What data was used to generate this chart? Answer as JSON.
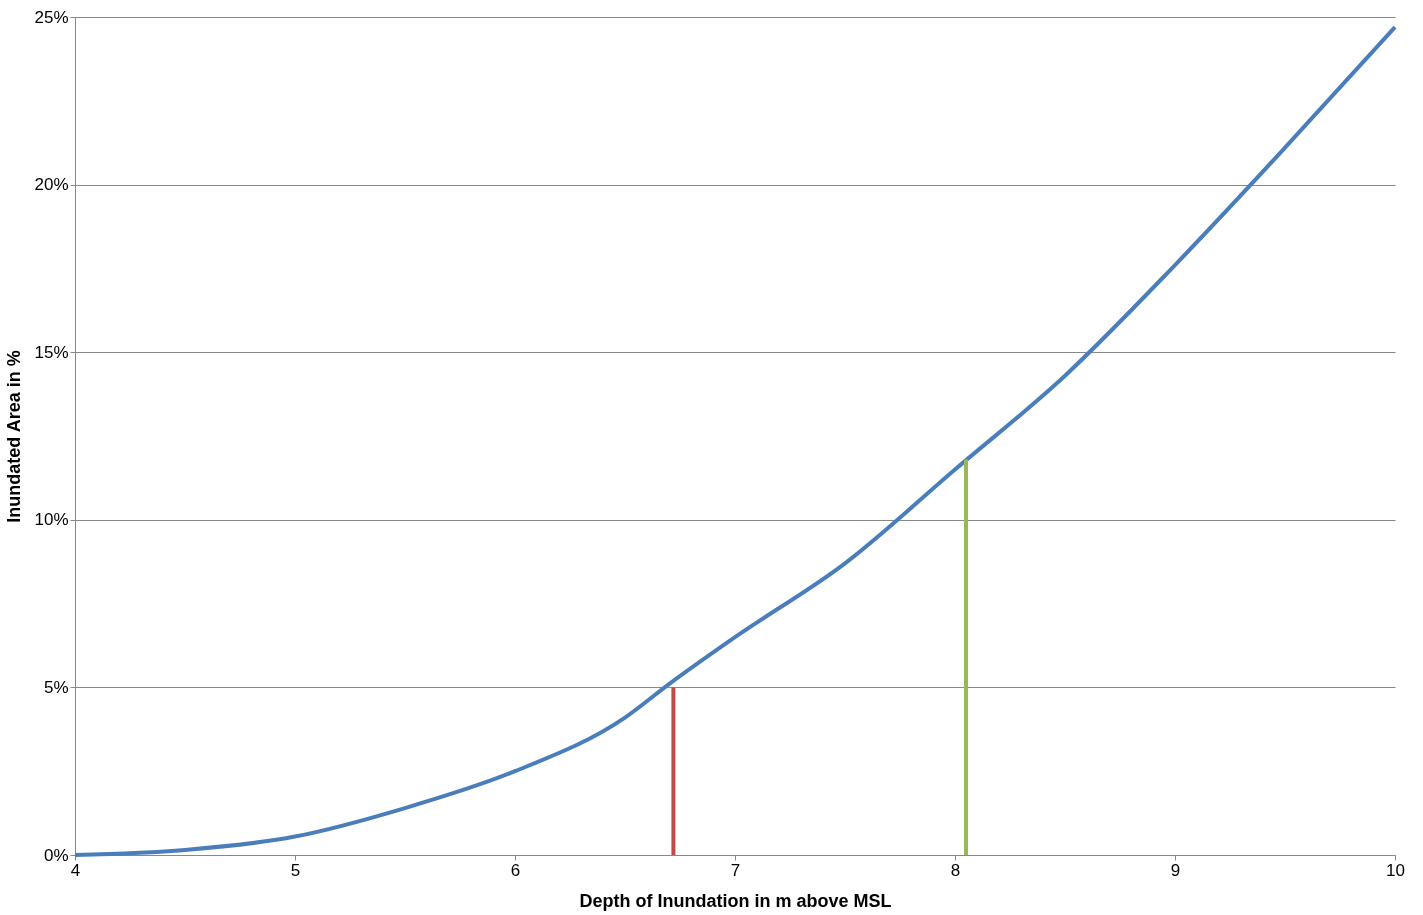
{
  "chart_data": {
    "type": "line",
    "xlabel": "Depth of Inundation in m above MSL",
    "ylabel": "Inundated Area in %",
    "xlim": [
      4,
      10
    ],
    "xticks": [
      4,
      5,
      6,
      7,
      8,
      9,
      10
    ],
    "ylim": [
      0,
      25
    ],
    "yticks": [
      {
        "value": 0,
        "label": "0%"
      },
      {
        "value": 5,
        "label": "5%"
      },
      {
        "value": 10,
        "label": "10%"
      },
      {
        "value": 15,
        "label": "15%"
      },
      {
        "value": 20,
        "label": "20%"
      },
      {
        "value": 25,
        "label": "25%"
      }
    ],
    "grid": "y",
    "marker": "none",
    "line_style": "solid",
    "series": [
      {
        "color": "#4a7ebb",
        "x": [
          4,
          4.5,
          5,
          5.5,
          6,
          6.5,
          6.7,
          7,
          7.5,
          8,
          8.5,
          9,
          9.5,
          10
        ],
        "values": [
          0,
          0.15,
          0.55,
          1.4,
          2.5,
          4.1,
          5.1,
          6.5,
          8.7,
          11.5,
          14.3,
          17.6,
          21.1,
          24.7
        ]
      },
      {
        "color": "#be4b48",
        "x": [
          6.72,
          6.72
        ],
        "values": [
          0,
          5
        ]
      },
      {
        "color": "#98b954",
        "x": [
          8.05,
          8.05
        ],
        "values": [
          0,
          11.8
        ]
      }
    ]
  }
}
